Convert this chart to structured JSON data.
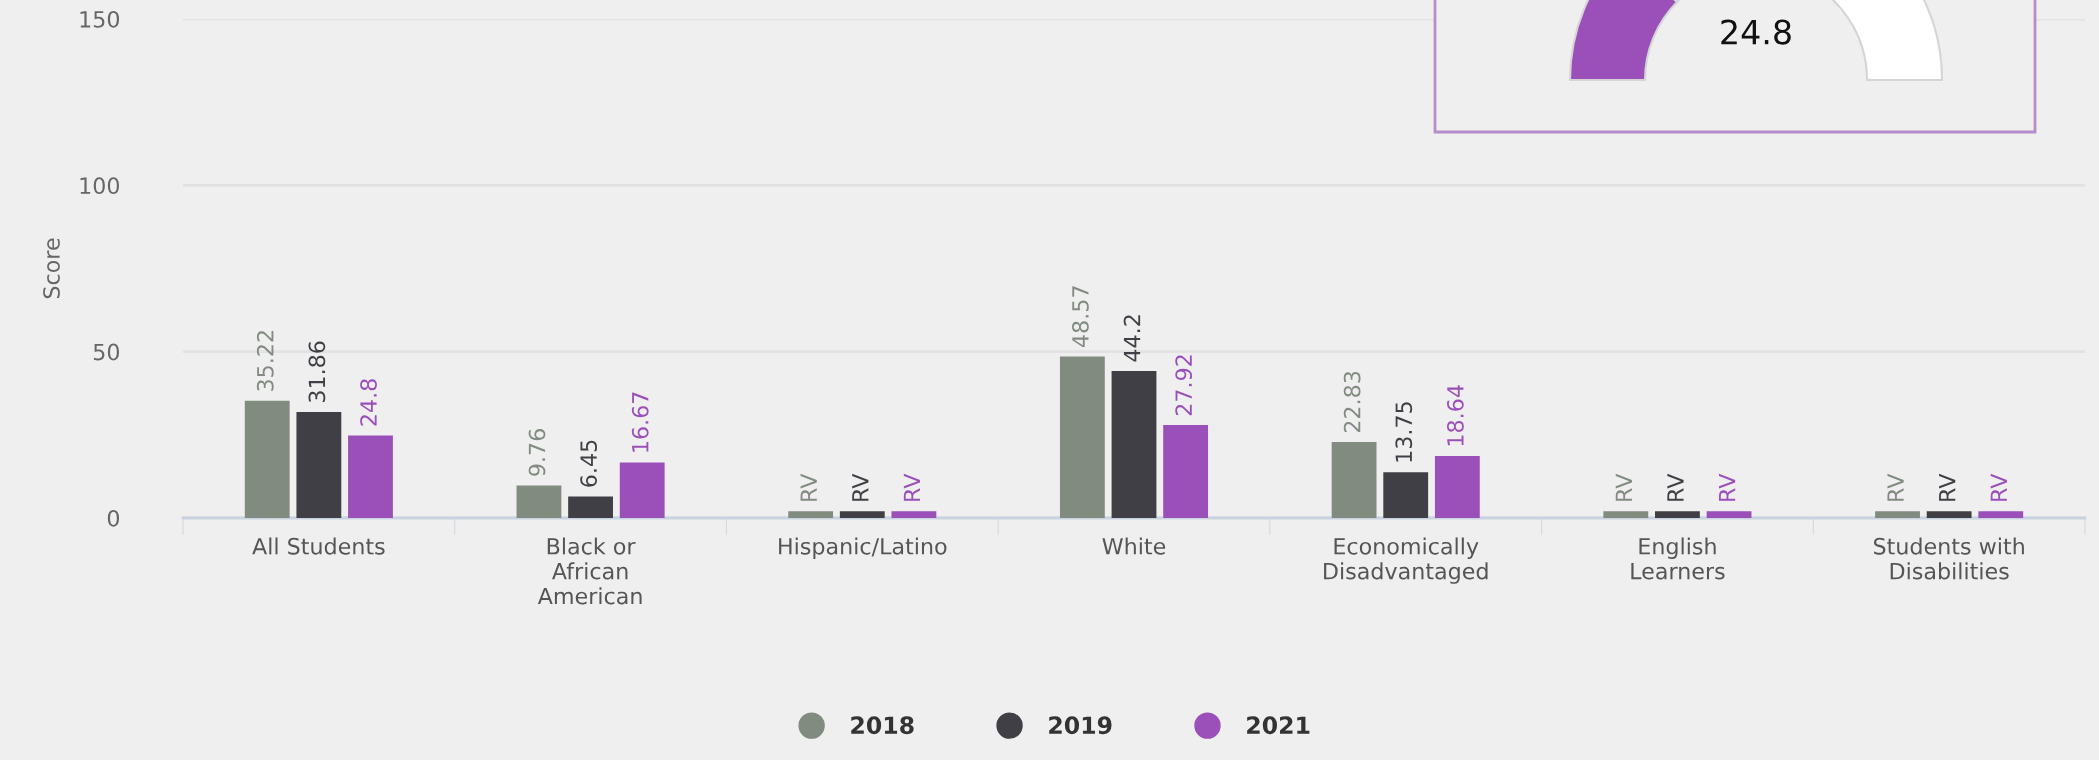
{
  "chart_data": [
    {
      "type": "bar",
      "ylabel": "Score",
      "categories": [
        "All Students",
        "Black or\nAfrican\nAmerican",
        "Hispanic/Latino",
        "White",
        "Economically\nDisadvantaged",
        "English\nLearners",
        "Students with\nDisabilities"
      ],
      "series": [
        {
          "name": "2018",
          "color": "#818b80",
          "values": [
            35.22,
            9.76,
            2,
            48.57,
            22.83,
            2,
            2
          ],
          "value_labels": [
            "35.22",
            "9.76",
            "RV",
            "48.57",
            "22.83",
            "RV",
            "RV"
          ]
        },
        {
          "name": "2019",
          "color": "#403f45",
          "values": [
            31.86,
            6.45,
            2,
            44.2,
            13.75,
            2,
            2
          ],
          "value_labels": [
            "31.86",
            "6.45",
            "RV",
            "44.2",
            "13.75",
            "RV",
            "RV"
          ]
        },
        {
          "name": "2021",
          "color": "#9b4fb9",
          "values": [
            24.8,
            16.67,
            2,
            27.92,
            18.64,
            2,
            2
          ],
          "value_labels": [
            "24.8",
            "16.67",
            "RV",
            "27.92",
            "18.64",
            "RV",
            "RV"
          ]
        }
      ],
      "ylim": [
        0,
        150
      ],
      "yticks": [
        0,
        50,
        100,
        150
      ],
      "grid": "y",
      "legend": "bottom"
    },
    {
      "type": "donut",
      "categories": [
        null,
        null
      ],
      "values": [
        24.8,
        75.2
      ],
      "colors": [
        "#9b4fb9",
        "#ffffff"
      ],
      "annotations": [
        "24.8"
      ]
    }
  ]
}
